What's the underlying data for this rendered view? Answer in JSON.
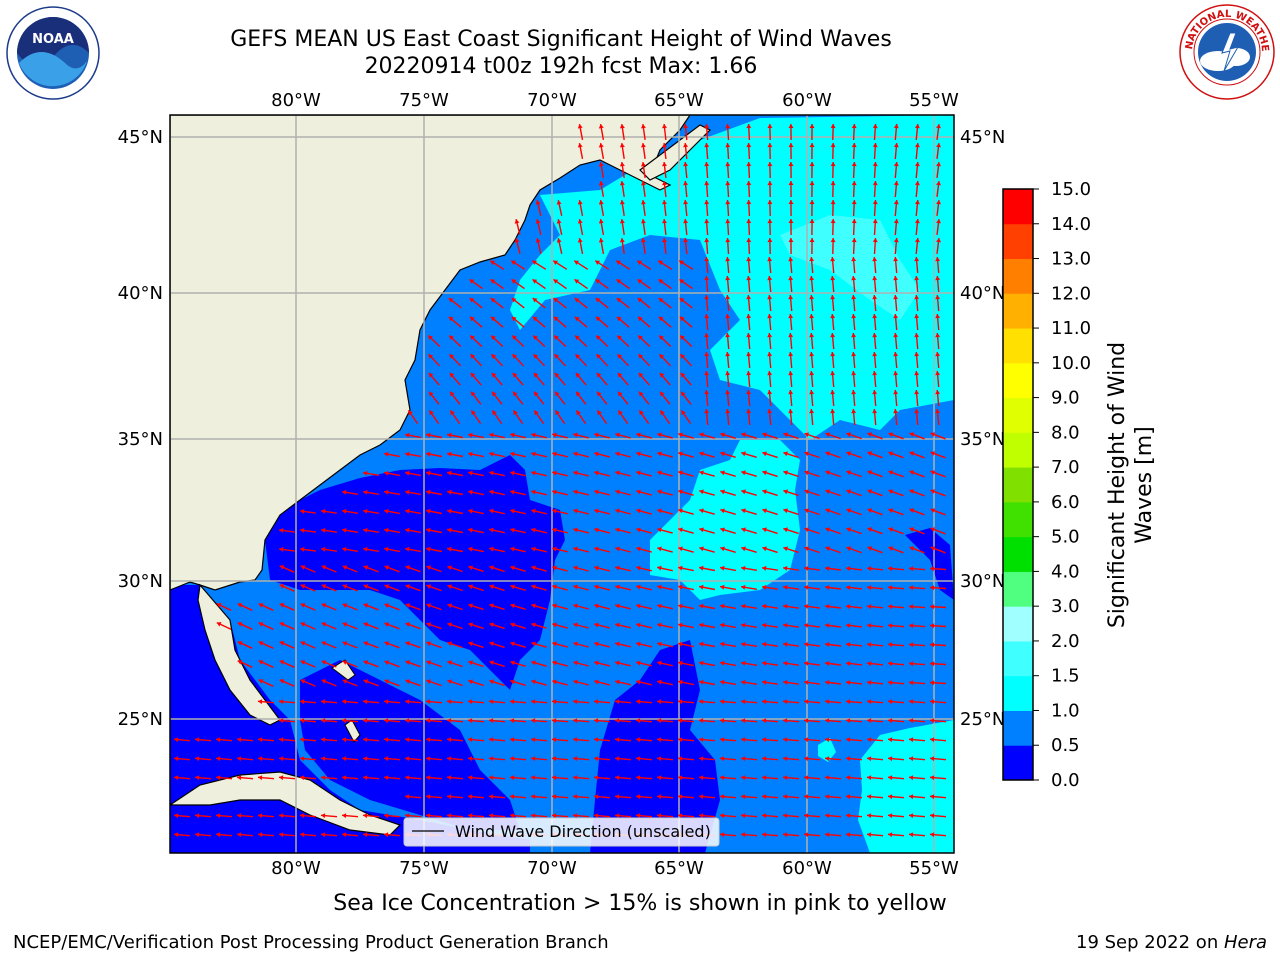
{
  "header": {
    "title_line1": "GEFS MEAN US East Coast Significant Height of Wind Waves",
    "title_line2": "20220914 t00z 192h fcst   Max: 1.66"
  },
  "logos": {
    "left": {
      "icon": "noaa-logo",
      "text": "NOAA"
    },
    "right": {
      "icon": "nws-logo",
      "ring_text": "NATIONAL WEATHER SERVICE"
    }
  },
  "map": {
    "lon_labels": [
      "80°W",
      "75°W",
      "70°W",
      "65°W",
      "60°W",
      "55°W"
    ],
    "lat_labels": [
      "45°N",
      "40°N",
      "35°N",
      "30°N",
      "25°N"
    ],
    "legend_label": "Wind Wave Direction (unscaled)",
    "colors": {
      "land": "#efefdd",
      "grid": "#b0b0b0",
      "arrow": "#ff0000"
    }
  },
  "colorbar": {
    "label_line1": "Significant Height of Wind",
    "label_line2": "Waves [m]",
    "ticks": [
      "0.0",
      "0.5",
      "1.0",
      "1.5",
      "2.0",
      "3.0",
      "4.0",
      "5.0",
      "6.0",
      "7.0",
      "8.0",
      "9.0",
      "10.0",
      "11.0",
      "12.0",
      "13.0",
      "14.0",
      "15.0"
    ],
    "colors": [
      "#0000ff",
      "#0080ff",
      "#00ffff",
      "#40ffff",
      "#a0ffff",
      "#50ff80",
      "#00e000",
      "#40e000",
      "#80e000",
      "#c0ff00",
      "#e0ff00",
      "#ffff00",
      "#ffe000",
      "#ffb000",
      "#ff8000",
      "#ff4000",
      "#ff0000"
    ]
  },
  "caption": "Sea Ice Concentration > 15% is shown in pink to yellow",
  "footer": {
    "left": "NCEP/EMC/Verification Post Processing Product Generation Branch",
    "right_date": "19 Sep 2022 on ",
    "right_host": "Hera"
  }
}
